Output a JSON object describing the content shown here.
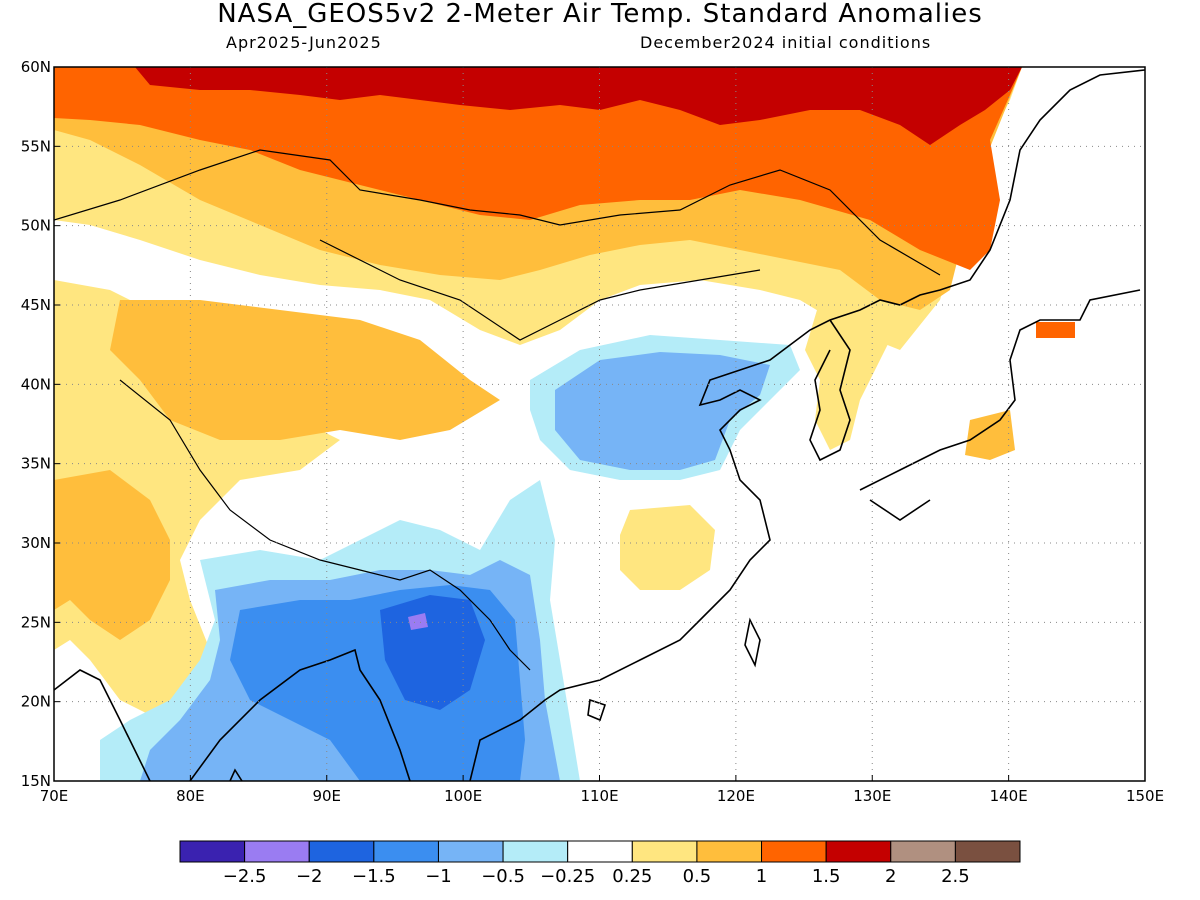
{
  "title": "NASA_GEOS5v2 2-Meter Air Temp. Standard Anomalies",
  "subtitle_left": "Apr2025-Jun2025",
  "subtitle_right": "December2024 initial conditions",
  "map": {
    "lon_range": [
      70,
      150
    ],
    "lat_range": [
      15,
      60
    ],
    "lon_ticks": [
      "70E",
      "80E",
      "90E",
      "100E",
      "110E",
      "120E",
      "130E",
      "140E",
      "150E"
    ],
    "lat_ticks": [
      "60N",
      "55N",
      "50N",
      "45N",
      "40N",
      "35N",
      "30N",
      "25N",
      "20N",
      "15N"
    ],
    "grid": "dotted"
  },
  "colorbar": {
    "colors": [
      "#3a22b0",
      "#9a7cf2",
      "#1e64e0",
      "#3b8ef0",
      "#76b4f6",
      "#b4ecf8",
      "#ffffff",
      "#ffe680",
      "#ffbe3c",
      "#ff6400",
      "#c40000",
      "#b09080",
      "#7a5040"
    ],
    "labels": [
      "-2.5",
      "-2",
      "-1.5",
      "-1",
      "-0.5",
      "-0.25",
      "0.25",
      "0.5",
      "1",
      "1.5",
      "2",
      "2.5"
    ]
  },
  "colors": {
    "deep_warm": "#c40000",
    "warm": "#ff6400",
    "mild_warm": "#ffbe3c",
    "light_warm": "#ffe680",
    "neutral": "#ffffff",
    "light_cool": "#b4ecf8",
    "cool": "#76b4f6",
    "mid_cool": "#3b8ef0",
    "strong_cool": "#1e64e0",
    "very_strong_cool": "#9a7cf2"
  }
}
